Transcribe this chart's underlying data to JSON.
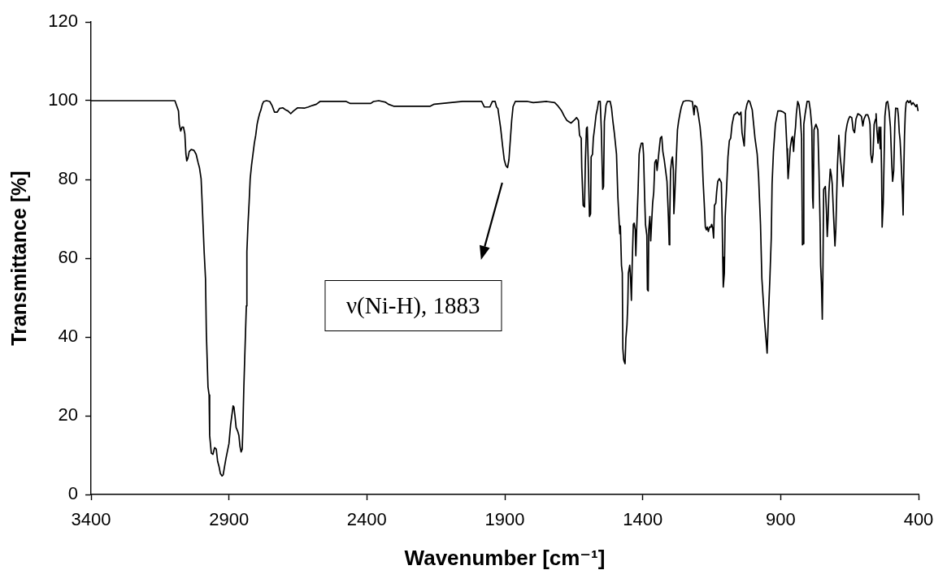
{
  "chart_data": {
    "type": "line",
    "xlabel": "Wavenumber [cm⁻¹]",
    "ylabel": "Transmittance [%]",
    "xlim": [
      3400,
      400
    ],
    "xticks": [
      3400,
      2900,
      2400,
      1900,
      1400,
      900,
      400
    ],
    "ylim": [
      0,
      120
    ],
    "yticks": [
      0,
      20,
      40,
      60,
      80,
      100,
      120
    ],
    "grid": false,
    "marker": "none",
    "line_style": "solid",
    "color": "#000000",
    "annotations": [
      "ν(Ni-H), 1883"
    ],
    "x": [
      3400,
      3096,
      3090,
      3083,
      3080,
      3075,
      3070,
      3065,
      3060,
      3056,
      3053,
      3049,
      3044,
      3037,
      3027,
      3019,
      3012,
      3007,
      3001,
      2998,
      2994,
      2990,
      2985,
      2982,
      2976,
      2972,
      2970,
      2964,
      2958,
      2952,
      2946,
      2941,
      2936,
      2931,
      2925,
      2921,
      2916,
      2911,
      2905,
      2900,
      2894,
      2890,
      2885,
      2882,
      2878,
      2874,
      2868,
      2864,
      2860,
      2856,
      2852,
      2850,
      2846,
      2843,
      2840,
      2837,
      2835,
      2831,
      2827,
      2823,
      2818,
      2813,
      2808,
      2803,
      2798,
      2794,
      2789,
      2784,
      2779,
      2774,
      2764,
      2752,
      2744,
      2735,
      2725,
      2717,
      2705,
      2695,
      2686,
      2676,
      2666,
      2651,
      2627,
      2612,
      2597,
      2583,
      2570,
      2475,
      2460,
      2386,
      2376,
      2357,
      2332,
      2322,
      2303,
      2170,
      2156,
      2053,
      1984,
      1974,
      1954,
      1945,
      1935,
      1930,
      1925,
      1915,
      1908,
      1902,
      1896,
      1890,
      1885,
      1880,
      1875,
      1870,
      1862,
      1817,
      1797,
      1748,
      1719,
      1709,
      1694,
      1684,
      1675,
      1660,
      1645,
      1640,
      1633,
      1629,
      1623,
      1621,
      1616,
      1611,
      1608,
      1604,
      1601,
      1598,
      1593,
      1589,
      1587,
      1582,
      1579,
      1574,
      1569,
      1564,
      1560,
      1554,
      1550,
      1545,
      1542,
      1539,
      1533,
      1528,
      1518,
      1513,
      1508,
      1503,
      1495,
      1490,
      1485,
      1483,
      1481,
      1477,
      1474,
      1472,
      1469,
      1464,
      1461,
      1457,
      1454,
      1452,
      1447,
      1444,
      1441,
      1438,
      1434,
      1431,
      1427,
      1425,
      1422,
      1417,
      1413,
      1410,
      1405,
      1400,
      1397,
      1393,
      1390,
      1385,
      1383,
      1380,
      1378,
      1374,
      1371,
      1368,
      1364,
      1360,
      1356,
      1351,
      1348,
      1344,
      1340,
      1336,
      1331,
      1327,
      1322,
      1317,
      1312,
      1307,
      1304,
      1302,
      1299,
      1295,
      1292,
      1289,
      1287,
      1284,
      1279,
      1274,
      1270,
      1265,
      1260,
      1253,
      1243,
      1233,
      1220,
      1217,
      1214,
      1211,
      1204,
      1199,
      1192,
      1186,
      1181,
      1177,
      1173,
      1169,
      1166,
      1162,
      1158,
      1153,
      1150,
      1146,
      1143,
      1140,
      1135,
      1132,
      1128,
      1122,
      1115,
      1112,
      1110,
      1108,
      1104,
      1101,
      1096,
      1091,
      1086,
      1081,
      1076,
      1069,
      1063,
      1057,
      1050,
      1044,
      1040,
      1032,
      1027,
      1022,
      1017,
      1012,
      1003,
      993,
      985,
      980,
      973,
      968,
      963,
      958,
      954,
      949,
      944,
      939,
      934,
      931,
      926,
      919,
      910,
      900,
      890,
      883,
      877,
      875,
      873,
      870,
      865,
      860,
      857,
      853,
      850,
      846,
      843,
      838,
      833,
      828,
      824,
      821,
      818,
      816,
      811,
      804,
      797,
      792,
      787,
      784,
      782,
      779,
      772,
      765,
      761,
      757,
      755,
      752,
      749,
      747,
      744,
      738,
      734,
      731,
      728,
      725,
      720,
      716,
      713,
      708,
      703,
      700,
      697,
      694,
      689,
      684,
      679,
      674,
      669,
      664,
      659,
      654,
      649,
      642,
      637,
      632,
      627,
      620,
      613,
      607,
      602,
      598,
      591,
      584,
      579,
      576,
      573,
      569,
      565,
      561,
      556,
      554,
      551,
      547,
      543,
      539,
      537,
      534,
      532,
      528,
      525,
      522,
      517,
      512,
      507,
      502,
      497,
      494,
      490,
      486,
      483,
      476,
      473,
      470,
      467,
      464,
      461,
      458,
      456,
      454,
      451,
      448,
      445,
      440,
      435,
      430,
      425,
      420,
      415,
      410,
      406,
      402
    ],
    "values": [
      100,
      100,
      98.8,
      97.4,
      94,
      92.3,
      93.3,
      93.3,
      91.6,
      86.4,
      84.7,
      85.4,
      87.1,
      87.6,
      87.4,
      86.4,
      84.3,
      83,
      80.2,
      75.4,
      68.6,
      61.7,
      54.8,
      41.1,
      27.3,
      25.3,
      15,
      10.5,
      10.2,
      11.9,
      11.5,
      8.4,
      7.1,
      5.3,
      4.7,
      5,
      7.1,
      9.1,
      11.2,
      12.9,
      17.7,
      19.8,
      22.5,
      22.2,
      19.8,
      17,
      16,
      15,
      12.2,
      10.8,
      11.5,
      15.7,
      27.3,
      34.2,
      41.1,
      47.9,
      61.7,
      68.6,
      74,
      80.2,
      83.7,
      86.4,
      89.2,
      91.2,
      94,
      95.3,
      96.7,
      97.7,
      99.1,
      99.8,
      100,
      99.8,
      98.8,
      97.1,
      97.1,
      98,
      98.2,
      97.7,
      97.4,
      96.7,
      97.4,
      98.2,
      98.1,
      98.4,
      98.8,
      99.1,
      99.8,
      99.8,
      99.3,
      99.3,
      99.8,
      100,
      99.6,
      99.1,
      98.6,
      98.6,
      99.1,
      99.8,
      99.8,
      98.4,
      98.4,
      99.8,
      99.8,
      98.4,
      98,
      93,
      88.5,
      85,
      83.5,
      83,
      85,
      90,
      95,
      98.5,
      99.8,
      99.8,
      99.5,
      99.8,
      99.5,
      98.8,
      97.4,
      96,
      95,
      94.3,
      95.3,
      95.7,
      95,
      91.2,
      90.5,
      83,
      73.4,
      73,
      84.3,
      93,
      93.3,
      85.7,
      70.6,
      71.3,
      85.7,
      86.4,
      90.5,
      93.3,
      96.4,
      98.1,
      99.8,
      99.8,
      92.6,
      77.5,
      78.2,
      94.7,
      98.8,
      99.8,
      99.8,
      98.1,
      94.7,
      91.9,
      86.4,
      75.4,
      68.6,
      66.2,
      68.2,
      58.2,
      56.2,
      37,
      34.2,
      33.2,
      39.7,
      43.1,
      48.6,
      56.2,
      58.2,
      54.8,
      49.3,
      58.9,
      68.6,
      68.9,
      67.2,
      60.6,
      67.2,
      76.8,
      86.4,
      87.8,
      89.2,
      89.2,
      86.4,
      75.4,
      68.6,
      65.8,
      52,
      51.7,
      67.2,
      70.6,
      64.4,
      68.6,
      74,
      76.8,
      84.3,
      85,
      82.3,
      85,
      87.8,
      90.5,
      90.9,
      87.1,
      85,
      82.3,
      79.5,
      70.6,
      63.4,
      69.9,
      82.3,
      85,
      85.7,
      82.3,
      71.3,
      75.4,
      84.3,
      92.6,
      94.7,
      96.7,
      98.4,
      99.8,
      100,
      100,
      99.8,
      98.1,
      96.4,
      98.8,
      98.4,
      96.7,
      93.3,
      88.5,
      79.5,
      74,
      67.9,
      67.2,
      67.9,
      66.8,
      67.9,
      67.9,
      68.6,
      67.5,
      65.1,
      73.4,
      74,
      76.8,
      79.5,
      80.2,
      79.2,
      69.9,
      60.3,
      52.7,
      56.2,
      70.6,
      77.5,
      85.7,
      89.8,
      90.5,
      94,
      96.4,
      96.7,
      97.1,
      96.4,
      97.1,
      91.9,
      88.5,
      97.4,
      99.1,
      100,
      99.8,
      97.7,
      90.5,
      86.4,
      80.9,
      68.6,
      54.8,
      49.3,
      43.8,
      40.4,
      35.9,
      45.9,
      54.8,
      65.1,
      78.9,
      87.1,
      94,
      97.4,
      97.4,
      97.1,
      96.7,
      87.8,
      84.3,
      80.2,
      83,
      88.1,
      90.5,
      90.9,
      87.1,
      90.5,
      93.3,
      96.7,
      99.8,
      98.8,
      95.3,
      90.5,
      63.4,
      63.7,
      94,
      96.7,
      99.8,
      99.8,
      97.4,
      93.3,
      75.4,
      72.7,
      92.6,
      94,
      92.6,
      82.3,
      68.6,
      58.2,
      53.4,
      44.5,
      54.8,
      77.5,
      78.2,
      72,
      65.5,
      69.9,
      76.8,
      82.6,
      80.9,
      78.9,
      70.6,
      63.1,
      67.2,
      75.4,
      83.7,
      91.2,
      85.7,
      82.3,
      78.2,
      85.7,
      91.9,
      94,
      95.3,
      96,
      95.7,
      92.6,
      91.9,
      95.3,
      96.7,
      96.4,
      96,
      93.6,
      95.3,
      96.4,
      96.4,
      95.3,
      94,
      86.4,
      84.3,
      86.4,
      94,
      95.3,
      96.7,
      92.6,
      89.2,
      93.3,
      87.8,
      93.3,
      81.6,
      67.9,
      74,
      85,
      96,
      99.5,
      99.8,
      97.4,
      93.3,
      83.7,
      79.5,
      82.3,
      94,
      98.1,
      98,
      96,
      92,
      90,
      86,
      81,
      76,
      71,
      80,
      91,
      97,
      99.5,
      100,
      99.5,
      100,
      99,
      99.5,
      99,
      98.5,
      99,
      97.5
    ]
  }
}
